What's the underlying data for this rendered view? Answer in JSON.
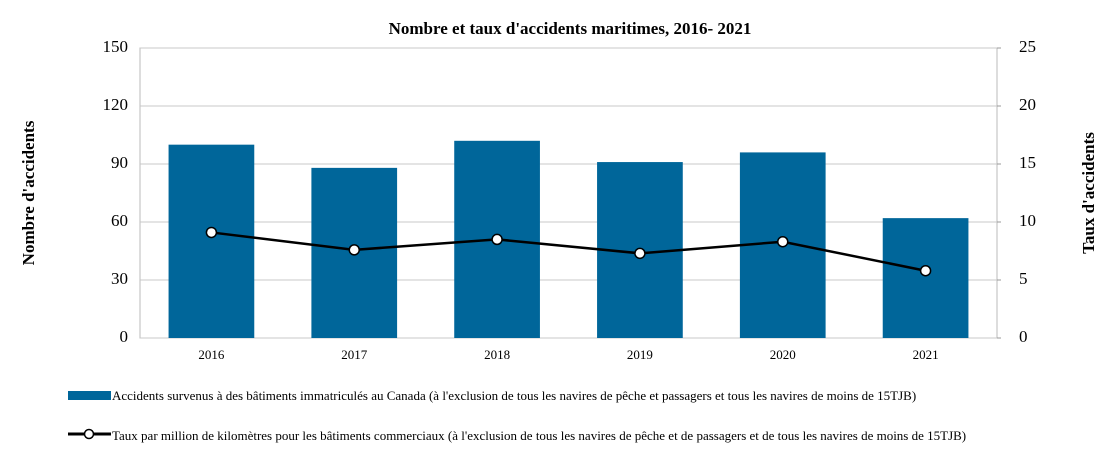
{
  "chart_data": {
    "type": "bar-line",
    "title": "Nombre et taux d'accidents maritimes, 2016- 2021",
    "ylabel": "Nombre d'accidents",
    "y2label": "Taux d'accidents",
    "categories": [
      "2016",
      "2017",
      "2018",
      "2019",
      "2020",
      "2021"
    ],
    "series": [
      {
        "name": "Accidents survenus à des bâtiments immatriculés au Canada (à l'exclusion de tous les navires de pêche et passagers et tous les navires de moins de 15TJB)",
        "type": "bar",
        "color": "#00669a",
        "values": [
          100,
          88,
          102,
          91,
          96,
          62
        ]
      },
      {
        "name": "Taux par million de kilomètres pour les bâtiments commerciaux (à l'exclusion de tous les navires de pêche et de passagers et de tous les navires de moins de 15TJB)",
        "type": "line",
        "axis": "y2",
        "color": "#000000",
        "values": [
          9.1,
          7.6,
          8.5,
          7.3,
          8.3,
          5.8
        ]
      }
    ],
    "ylim": [
      0,
      150
    ],
    "yticks": [
      0,
      30,
      60,
      90,
      120,
      150
    ],
    "y2lim": [
      0,
      25
    ],
    "y2ticks": [
      0,
      5,
      10,
      15,
      20,
      25
    ],
    "grid": true
  }
}
